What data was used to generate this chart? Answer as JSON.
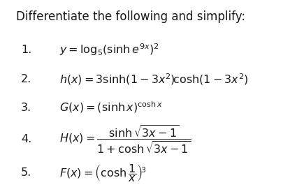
{
  "background_color": "#ffffff",
  "text_color": "#1a1a1a",
  "title": "Differentiate the following and simplify:",
  "title_fs": 12.0,
  "num_fs": 11.5,
  "math_fs": 11.5,
  "items": [
    {
      "num": "1.",
      "nx": 0.07,
      "ny": 0.735,
      "formula": "$y=\\log_5\\!\\left(\\sinh e^{9x}\\right)^2$",
      "fx": 0.2,
      "fy": 0.735
    },
    {
      "num": "2.",
      "nx": 0.07,
      "ny": 0.575,
      "formula": "$h(x)=3\\sinh\\!\\left(1-3x^2\\right)\\!\\cosh\\!\\left(1-3x^2\\right)$",
      "fx": 0.2,
      "fy": 0.575
    },
    {
      "num": "3.",
      "nx": 0.07,
      "ny": 0.425,
      "formula": "$G(x)=\\left(\\sinh x\\right)^{\\cosh x}$",
      "fx": 0.2,
      "fy": 0.425
    },
    {
      "num": "4.",
      "nx": 0.07,
      "ny": 0.255,
      "formula": "$H(x)=\\dfrac{\\sinh\\sqrt{3x-1}}{1+\\cosh\\sqrt{3x-1}}$",
      "fx": 0.2,
      "fy": 0.255
    },
    {
      "num": "5.",
      "nx": 0.07,
      "ny": 0.075,
      "formula": "$F(x)=\\left(\\cosh\\dfrac{1}{x}\\right)^{\\!3}$",
      "fx": 0.2,
      "fy": 0.075
    }
  ]
}
